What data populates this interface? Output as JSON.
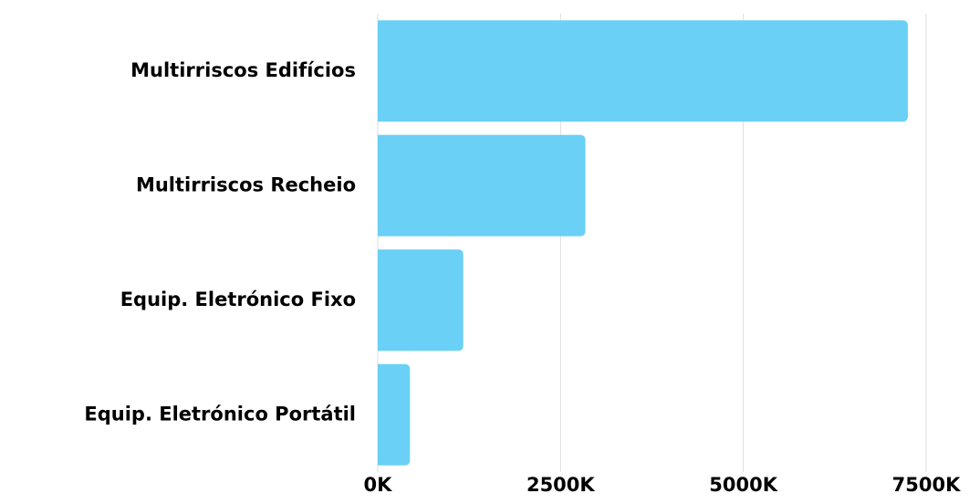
{
  "chart_data": {
    "type": "bar",
    "orientation": "horizontal",
    "categories": [
      "Multirriscos Edifícios",
      "Multirriscos Recheio",
      "Equip. Eletrónico Fixo",
      "Equip. Eletrónico Portátil"
    ],
    "values": [
      7250000,
      2840000,
      1170000,
      440000
    ],
    "color": "#6ad0f5",
    "xlim": [
      0,
      7500000
    ],
    "xticks": [
      {
        "value": 0,
        "label": "0K"
      },
      {
        "value": 2500000,
        "label": "2500K"
      },
      {
        "value": 5000000,
        "label": "5000K"
      },
      {
        "value": 7500000,
        "label": "7500K"
      }
    ],
    "grid": true
  }
}
